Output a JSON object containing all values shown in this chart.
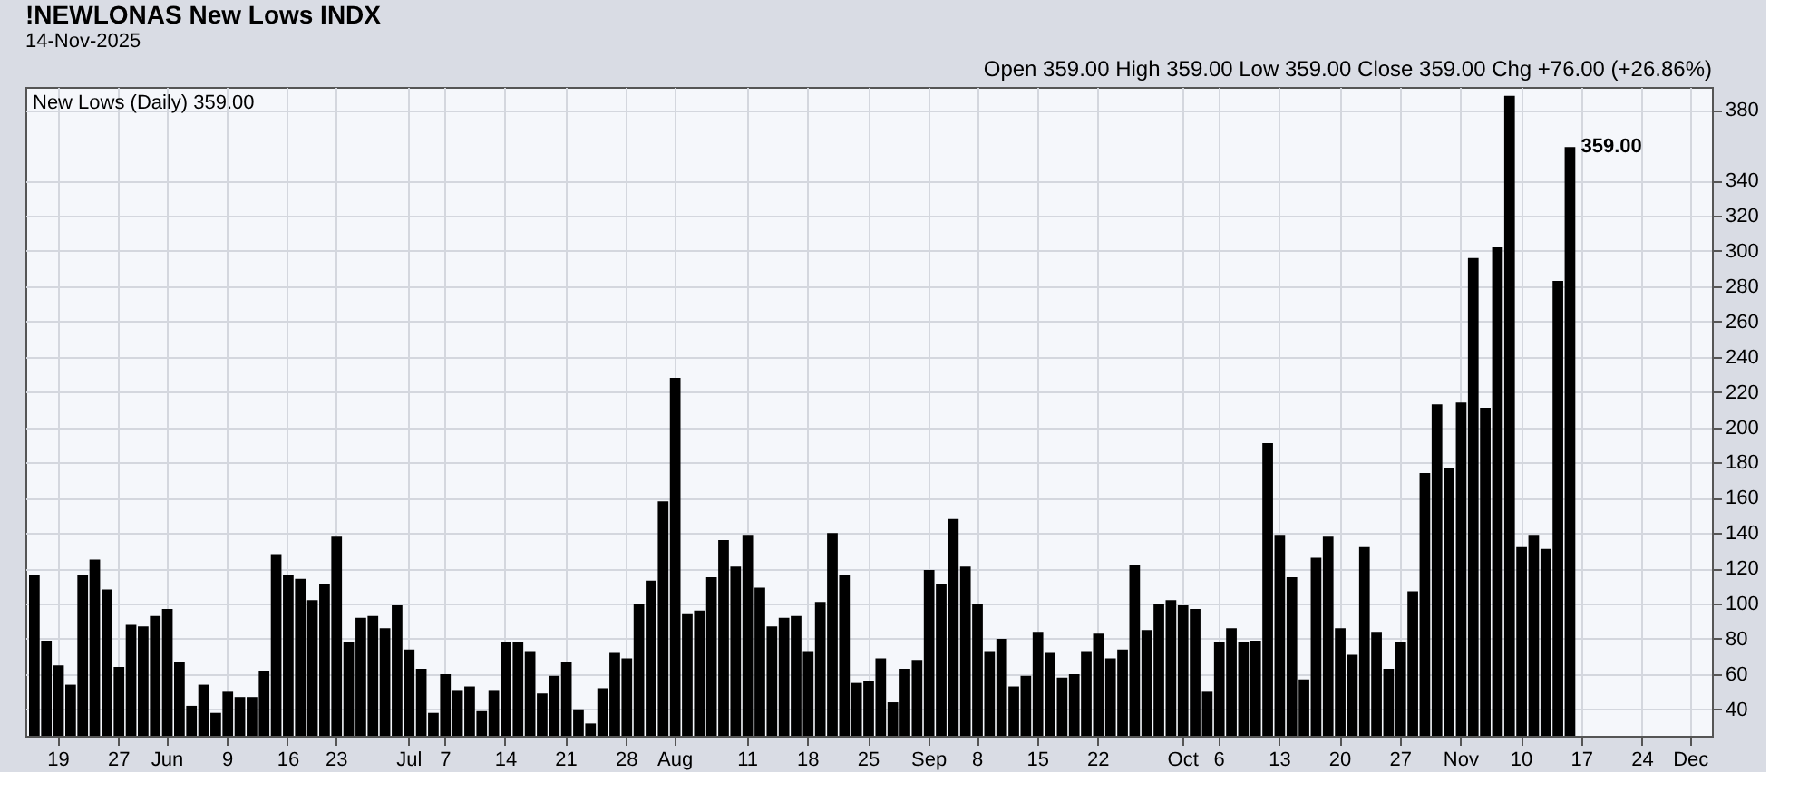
{
  "chart_data": {
    "type": "bar",
    "title": "!NEWLONAS New Lows INDX",
    "subtitle": "14-Nov-2025",
    "annotations": [
      "Open 359.00  High 359.00  Low 359.00  Close 359.00  Chg +76.00 (+26.86%)",
      "New Lows (Daily) 359.00",
      "359.00"
    ],
    "categories": [
      null,
      null,
      "19",
      null,
      null,
      null,
      null,
      "27",
      null,
      null,
      null,
      "Jun",
      null,
      null,
      null,
      null,
      "9",
      null,
      null,
      null,
      null,
      "16",
      null,
      null,
      null,
      "23",
      null,
      null,
      null,
      null,
      null,
      "Jul",
      null,
      null,
      "7",
      null,
      null,
      null,
      null,
      "14",
      null,
      null,
      null,
      null,
      "21",
      null,
      null,
      null,
      null,
      "28",
      null,
      null,
      null,
      "Aug",
      null,
      null,
      null,
      null,
      null,
      "11",
      null,
      null,
      null,
      null,
      "18",
      null,
      null,
      null,
      null,
      "25",
      null,
      null,
      null,
      null,
      "Sep",
      null,
      null,
      null,
      "8",
      null,
      null,
      null,
      null,
      "15",
      null,
      null,
      null,
      null,
      "22",
      null,
      null,
      null,
      null,
      null,
      null,
      "Oct",
      null,
      null,
      "6",
      null,
      null,
      null,
      null,
      "13",
      null,
      null,
      null,
      null,
      "20",
      null,
      null,
      null,
      null,
      "27",
      null,
      null,
      null,
      null,
      "Nov",
      null,
      null,
      null,
      null,
      "10",
      null,
      null,
      null,
      null,
      "17",
      null,
      null,
      null,
      null,
      "24",
      null,
      null,
      null,
      "Dec",
      null
    ],
    "values": [
      116,
      79,
      65,
      54,
      116,
      125,
      108,
      64,
      88,
      87,
      93,
      97,
      67,
      42,
      54,
      38,
      50,
      47,
      47,
      62,
      128,
      116,
      114,
      102,
      111,
      138,
      78,
      92,
      93,
      86,
      99,
      74,
      63,
      38,
      60,
      51,
      53,
      39,
      51,
      78,
      78,
      73,
      49,
      59,
      67,
      40,
      32,
      52,
      72,
      69,
      100,
      113,
      158,
      228,
      94,
      96,
      115,
      136,
      121,
      139,
      109,
      87,
      92,
      93,
      73,
      101,
      140,
      116,
      55,
      56,
      69,
      44,
      63,
      68,
      119,
      111,
      148,
      121,
      100,
      73,
      80,
      53,
      59,
      84,
      72,
      58,
      60,
      73,
      83,
      69,
      74,
      122,
      85,
      100,
      102,
      99,
      97,
      50,
      78,
      86,
      78,
      79,
      191,
      139,
      115,
      57,
      126,
      138,
      86,
      71,
      132,
      84,
      63,
      78,
      107,
      174,
      213,
      177,
      214,
      296,
      211,
      302,
      388,
      132,
      139,
      131,
      283,
      359,
      null,
      null,
      null,
      null,
      null,
      null,
      null,
      null,
      null,
      null,
      null
    ],
    "color": "#000000",
    "ylim": [
      25,
      393
    ],
    "yticks": [
      40,
      60,
      80,
      100,
      120,
      140,
      160,
      180,
      200,
      220,
      240,
      260,
      280,
      300,
      320,
      340,
      380
    ],
    "grid": true
  }
}
